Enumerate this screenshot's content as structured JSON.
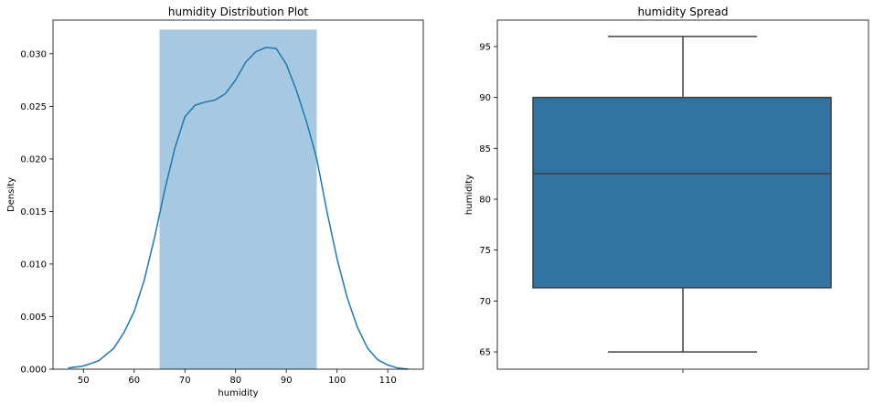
{
  "chart_data": [
    {
      "type": "histogram",
      "title": "humidity Distribution Plot",
      "xlabel": "humidity",
      "ylabel": "Density",
      "xlim": [
        44,
        117
      ],
      "ylim": [
        0,
        0.0332
      ],
      "xticks": [
        50,
        60,
        70,
        80,
        90,
        100,
        110
      ],
      "yticks": [
        0.0,
        0.005,
        0.01,
        0.015,
        0.02,
        0.025,
        0.03
      ],
      "ytick_labels": [
        "0.000",
        "0.005",
        "0.010",
        "0.015",
        "0.020",
        "0.025",
        "0.030"
      ],
      "bins": [
        {
          "x0": 65,
          "x1": 96,
          "density": 0.0323
        }
      ],
      "bar_color": "#a6c8e0",
      "line_color": "#1f77b4",
      "kde": {
        "x": [
          47,
          50,
          53,
          56,
          58,
          60,
          62,
          64,
          66,
          68,
          70,
          72,
          74,
          76,
          78,
          80,
          82,
          84,
          86,
          88,
          90,
          92,
          94,
          96,
          98,
          100,
          102,
          104,
          106,
          108,
          110,
          112,
          114
        ],
        "y": [
          0.0001,
          0.0003,
          0.0008,
          0.002,
          0.0035,
          0.0055,
          0.0085,
          0.0125,
          0.017,
          0.021,
          0.024,
          0.0251,
          0.0254,
          0.0256,
          0.0262,
          0.0275,
          0.0292,
          0.0302,
          0.0306,
          0.0305,
          0.029,
          0.0265,
          0.0235,
          0.02,
          0.015,
          0.0105,
          0.0068,
          0.004,
          0.002,
          0.0009,
          0.0004,
          0.0001,
          0.0
        ]
      }
    },
    {
      "type": "box",
      "title": "humidity Spread",
      "ylabel": "humidity",
      "ylim": [
        63.3,
        97.6
      ],
      "yticks": [
        65,
        70,
        75,
        80,
        85,
        90,
        95
      ],
      "box": {
        "min": 65,
        "q1": 71.3,
        "median": 82.5,
        "q3": 90,
        "max": 96
      },
      "box_color": "#3274a1"
    }
  ]
}
